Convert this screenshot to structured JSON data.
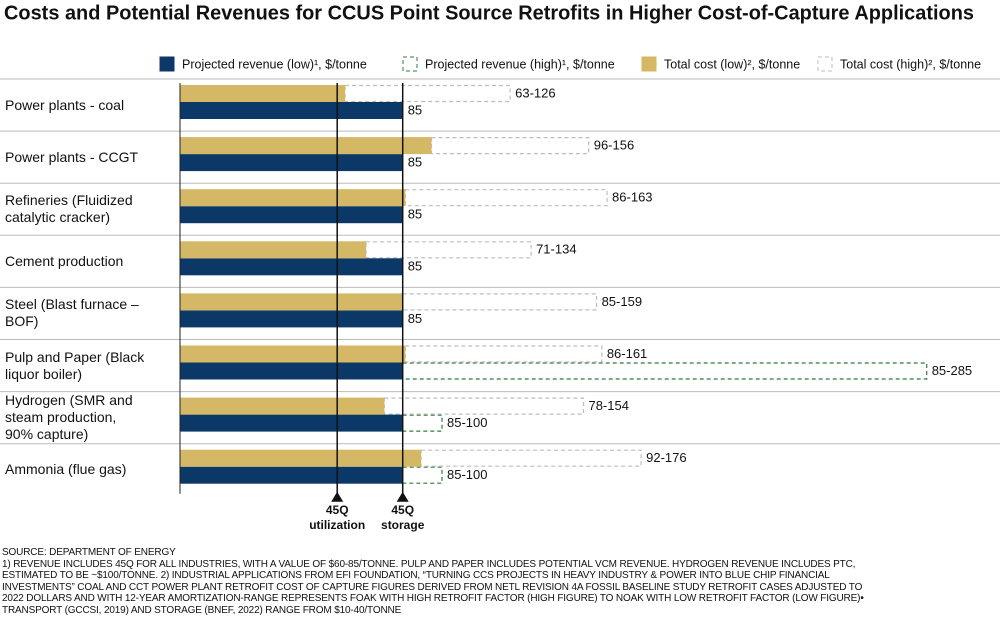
{
  "chart_data": {
    "type": "range-bar",
    "title": "Costs and Potential Revenues for CCUS Point Source Retrofits in Higher Cost-of-Capture Applications",
    "categories": [
      "Power plants - coal",
      "Power plants - CCGT",
      "Refineries (Fluidized\ncatalytic cracker)",
      "Cement production",
      "Steel (Blast furnace –\nBOF)",
      "Pulp and Paper (Black\nliquor boiler)",
      "Hydrogen (SMR and\nsteam production,\n90% capture)",
      "Ammonia (flue gas)"
    ],
    "series": [
      {
        "name": "Projected revenue (low)¹, $/tonne",
        "color": "#0c3868",
        "style": "solid",
        "values": [
          85,
          85,
          85,
          85,
          85,
          85,
          85,
          85
        ]
      },
      {
        "name": "Projected revenue (high)¹, $/tonne",
        "color": "#2e7d3a",
        "style": "dashed",
        "low_series": 0,
        "values": [
          null,
          null,
          null,
          null,
          null,
          285,
          100,
          100
        ],
        "value_labels": [
          null,
          null,
          null,
          null,
          null,
          "85-285",
          "85-100",
          "85-100"
        ]
      },
      {
        "name": "Total cost (low)², $/tonne",
        "color": "#d4b866",
        "style": "solid",
        "values": [
          63,
          96,
          86,
          71,
          85,
          86,
          78,
          92
        ]
      },
      {
        "name": "Total cost (high)², $/tonne",
        "color": "#bdbdbd",
        "style": "dashed",
        "low_series": 2,
        "values": [
          126,
          156,
          163,
          134,
          159,
          161,
          154,
          176
        ],
        "value_labels": [
          "63-126",
          "96-156",
          "86-163",
          "71-134",
          "85-159",
          "86-161",
          "78-154",
          "92-176"
        ]
      }
    ],
    "reference_lines": [
      {
        "value": 60,
        "label": [
          "45Q",
          "utilization"
        ]
      },
      {
        "value": 85,
        "label": [
          "45Q",
          "storage"
        ]
      }
    ],
    "footnotes": [
      "SOURCE: DEPARTMENT OF ENERGY",
      "1) REVENUE INCLUDES 45Q FOR ALL INDUSTRIES, WITH A VALUE OF $60-85/TONNE. PULP AND PAPER INCLUDES POTENTIAL VCM REVENUE. HYDROGEN REVENUE INCLUDES PTC,",
      "ESTIMATED TO BE ~$100/TONNE. 2) INDUSTRIAL APPLICATIONS FROM EFI FOUNDATION, “TURNING CCS PROJECTS IN HEAVY INDUSTRY & POWER INTO BLUE CHIP FINANCIAL",
      "INVESTMENTS” COAL AND CCT POWER PLANT RETROFIT COST OF CAPTURE FIGURES DERIVED FROM NETL REVISION 4A FOSSIL BASELINE STUDY RETROFIT CASES ADJUSTED TO",
      "2022 DOLLARS AND WITH 12-YEAR AMORTIZATION-RANGE REPRESENTS FOAK WITH HIGH RETROFIT FACTOR (HIGH FIGURE) TO NOAK WITH LOW RETROFIT FACTOR (LOW FIGURE)•",
      "TRANSPORT (GCCSI, 2019) AND STORAGE (BNEF, 2022) RANGE FROM $10-40/TONNE"
    ]
  }
}
